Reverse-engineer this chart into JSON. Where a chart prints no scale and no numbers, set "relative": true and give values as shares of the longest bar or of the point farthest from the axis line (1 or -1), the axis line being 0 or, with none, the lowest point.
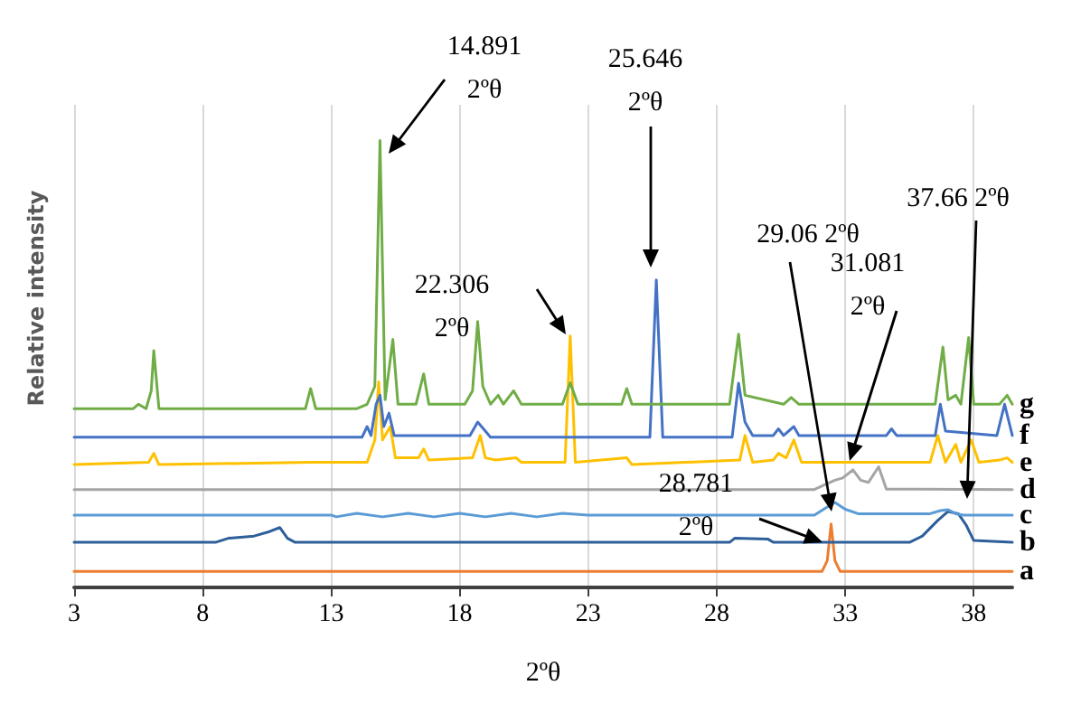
{
  "chart_data": {
    "type": "line",
    "relative": true,
    "xlabel": "2ºθ",
    "ylabel": "Relative intensity",
    "xlim": [
      3,
      39.5
    ],
    "xticks": [
      3,
      8,
      13,
      18,
      23,
      28,
      33,
      38
    ],
    "grid": "x",
    "legend": "right",
    "series": [
      {
        "name": "g",
        "color": "#70ad47",
        "x": [
          3,
          5.3,
          5.5,
          5.8,
          6.0,
          6.1,
          6.3,
          12.0,
          12.2,
          12.4,
          14.0,
          14.4,
          14.7,
          14.9,
          15.1,
          15.4,
          15.6,
          16.3,
          16.6,
          16.8,
          17.8,
          18.2,
          18.5,
          18.7,
          18.9,
          19.2,
          19.5,
          19.7,
          20.1,
          20.4,
          22.0,
          22.3,
          22.6,
          24.3,
          24.5,
          24.7,
          28.5,
          28.85,
          29.1,
          30.6,
          30.9,
          31.2,
          36.5,
          36.8,
          37.0,
          37.3,
          37.5,
          37.8,
          38.0,
          39.0,
          39.3,
          39.5
        ],
        "values": [
          0.4,
          0.4,
          0.41,
          0.4,
          0.44,
          0.53,
          0.4,
          0.4,
          0.445,
          0.4,
          0.4,
          0.41,
          0.45,
          1.0,
          0.42,
          0.555,
          0.41,
          0.41,
          0.478,
          0.41,
          0.41,
          0.41,
          0.44,
          0.595,
          0.45,
          0.41,
          0.43,
          0.41,
          0.44,
          0.41,
          0.41,
          0.458,
          0.41,
          0.41,
          0.445,
          0.41,
          0.41,
          0.567,
          0.43,
          0.41,
          0.425,
          0.41,
          0.41,
          0.538,
          0.42,
          0.43,
          0.41,
          0.559,
          0.41,
          0.41,
          0.43,
          0.41
        ]
      },
      {
        "name": "f",
        "color": "#4472c4",
        "x": [
          3,
          14.2,
          14.4,
          14.55,
          14.75,
          14.9,
          15.05,
          15.25,
          15.45,
          18.4,
          18.7,
          19.0,
          19.2,
          25.4,
          25.65,
          25.9,
          28.6,
          28.85,
          29.1,
          29.4,
          30.2,
          30.4,
          30.6,
          31.0,
          31.2,
          34.6,
          34.8,
          35.0,
          36.5,
          36.7,
          36.9,
          38.9,
          39.2,
          39.5
        ],
        "values": [
          0.336,
          0.336,
          0.36,
          0.34,
          0.41,
          0.43,
          0.36,
          0.39,
          0.34,
          0.34,
          0.37,
          0.35,
          0.336,
          0.336,
          0.688,
          0.336,
          0.336,
          0.457,
          0.37,
          0.34,
          0.34,
          0.355,
          0.34,
          0.36,
          0.34,
          0.34,
          0.355,
          0.34,
          0.34,
          0.41,
          0.35,
          0.34,
          0.41,
          0.34
        ]
      },
      {
        "name": "e",
        "color": "#ffc000",
        "x": [
          3,
          5.9,
          6.1,
          6.3,
          12.2,
          14.4,
          14.7,
          14.85,
          15.0,
          15.3,
          15.5,
          16.4,
          16.6,
          16.8,
          18.5,
          18.8,
          19.0,
          19.4,
          20.2,
          20.4,
          22.1,
          22.3,
          22.5,
          24.5,
          24.7,
          28.9,
          29.1,
          29.4,
          30.2,
          30.4,
          30.7,
          31.0,
          31.3,
          36.3,
          36.6,
          36.9,
          37.3,
          37.5,
          37.9,
          38.2,
          39.0,
          39.3,
          39.5
        ],
        "values": [
          0.275,
          0.28,
          0.3,
          0.275,
          0.28,
          0.28,
          0.33,
          0.46,
          0.33,
          0.36,
          0.29,
          0.29,
          0.31,
          0.285,
          0.29,
          0.34,
          0.29,
          0.285,
          0.29,
          0.28,
          0.28,
          0.563,
          0.28,
          0.29,
          0.275,
          0.285,
          0.34,
          0.28,
          0.285,
          0.3,
          0.29,
          0.33,
          0.28,
          0.28,
          0.34,
          0.28,
          0.32,
          0.28,
          0.33,
          0.28,
          0.285,
          0.29,
          0.28
        ]
      },
      {
        "name": "d",
        "color": "#a5a5a5",
        "x": [
          3,
          31.8,
          32.2,
          32.6,
          32.9,
          33.3,
          33.6,
          33.9,
          34.3,
          34.6,
          39.5
        ],
        "values": [
          0.219,
          0.219,
          0.23,
          0.24,
          0.245,
          0.263,
          0.24,
          0.235,
          0.27,
          0.22,
          0.219
        ]
      },
      {
        "name": "c",
        "color": "#5b9bd5",
        "x": [
          3,
          13,
          13.2,
          14,
          15,
          16,
          17,
          18,
          19,
          20,
          21,
          22,
          23,
          31.8,
          32.3,
          32.6,
          33.0,
          33.5,
          36.3,
          36.7,
          37.0,
          37.3,
          37.6,
          39.5
        ],
        "values": [
          0.162,
          0.162,
          0.158,
          0.166,
          0.158,
          0.166,
          0.158,
          0.166,
          0.158,
          0.166,
          0.158,
          0.166,
          0.162,
          0.162,
          0.18,
          0.19,
          0.175,
          0.165,
          0.165,
          0.172,
          0.174,
          0.165,
          0.162,
          0.162
        ]
      },
      {
        "name": "b",
        "color": "#2e5f9a",
        "x": [
          3,
          8.5,
          9.0,
          10.0,
          10.6,
          11.0,
          11.3,
          11.6,
          28.5,
          28.7,
          30.0,
          30.2,
          35.5,
          36.0,
          36.6,
          37.0,
          37.4,
          37.7,
          38.0,
          39.5
        ],
        "values": [
          0.101,
          0.101,
          0.11,
          0.115,
          0.125,
          0.134,
          0.11,
          0.101,
          0.101,
          0.11,
          0.108,
          0.101,
          0.101,
          0.115,
          0.15,
          0.17,
          0.165,
          0.14,
          0.105,
          0.101
        ]
      },
      {
        "name": "a",
        "color": "#ed7d31",
        "x": [
          3,
          32.1,
          32.3,
          32.45,
          32.6,
          32.8,
          39.5
        ],
        "values": [
          0.036,
          0.036,
          0.06,
          0.142,
          0.06,
          0.036,
          0.036
        ]
      }
    ],
    "annotations": [
      "14.891 2ºθ",
      "25.646 2ºθ",
      "22.306 2ºθ",
      "29.06 2ºθ",
      "31.081 2ºθ",
      "37.66 2ºθ",
      "28.781 2ºθ"
    ]
  }
}
